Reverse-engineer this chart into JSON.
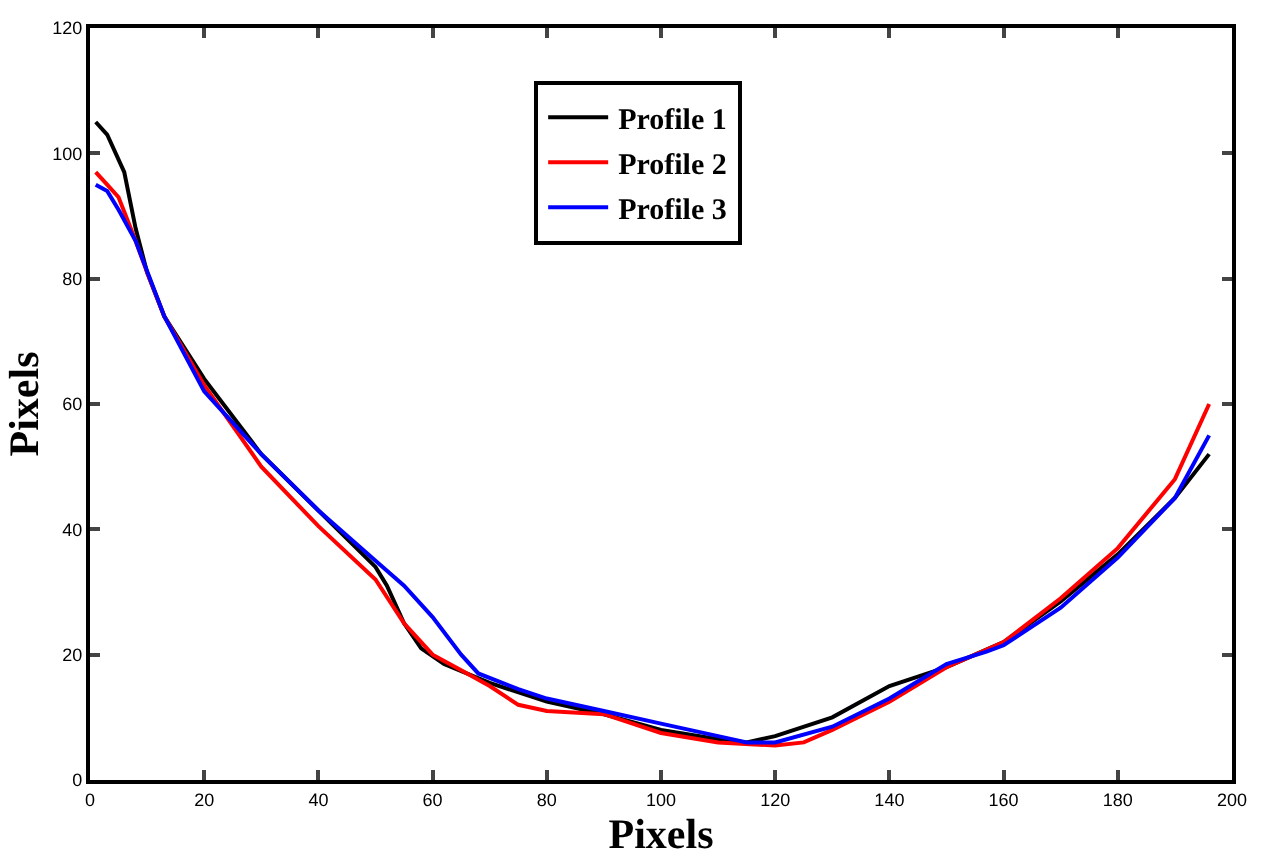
{
  "chart_data": {
    "type": "line",
    "xlabel": "Pixels",
    "ylabel": "Pixels",
    "xlim": [
      0,
      200
    ],
    "xticks": [
      0,
      20,
      40,
      60,
      80,
      100,
      120,
      140,
      160,
      180,
      200
    ],
    "ylim": [
      0,
      120
    ],
    "yticks": [
      0,
      20,
      40,
      60,
      80,
      100,
      120
    ],
    "grid": false,
    "legend": "top",
    "marker": "none",
    "line_style": "solid",
    "series": [
      {
        "name": "Profile 1",
        "color": "#000000",
        "x": [
          1,
          3,
          6,
          8,
          10,
          13,
          20,
          30,
          40,
          50,
          52,
          55,
          58,
          62,
          70,
          80,
          90,
          100,
          110,
          115,
          120,
          130,
          140,
          145,
          150,
          160,
          170,
          180,
          190,
          196
        ],
        "values": [
          105,
          103,
          97,
          88,
          81,
          74,
          64,
          52,
          43,
          34,
          31,
          25,
          21,
          18.5,
          15.5,
          12.5,
          10.5,
          8,
          6.5,
          6,
          7,
          10,
          15,
          16.5,
          18,
          22,
          28.5,
          36,
          45,
          52
        ]
      },
      {
        "name": "Profile 2",
        "color": "#ff0000",
        "x": [
          1,
          3,
          5,
          8,
          10,
          13,
          20,
          30,
          40,
          50,
          55,
          60,
          65,
          70,
          75,
          80,
          90,
          100,
          110,
          120,
          125,
          130,
          140,
          150,
          160,
          170,
          180,
          190,
          196
        ],
        "values": [
          97,
          95,
          93,
          86,
          81,
          74,
          63,
          50,
          40.5,
          32,
          25,
          20,
          17.5,
          15,
          12,
          11,
          10.5,
          7.5,
          6,
          5.5,
          6,
          8,
          12.5,
          18,
          22,
          29,
          37,
          48,
          60
        ]
      },
      {
        "name": "Profile 3",
        "color": "#0000ff",
        "x": [
          1,
          3,
          5,
          8,
          13,
          20,
          30,
          40,
          50,
          55,
          60,
          65,
          68,
          75,
          80,
          85,
          90,
          100,
          110,
          115,
          120,
          130,
          140,
          150,
          157,
          160,
          170,
          180,
          190,
          196
        ],
        "values": [
          95,
          94,
          91,
          86,
          74,
          62,
          52,
          43,
          35,
          31,
          26,
          20,
          17,
          14.5,
          13,
          12,
          11,
          9,
          7,
          6,
          6,
          8.5,
          13,
          18.5,
          20.5,
          21.5,
          27.5,
          35.5,
          45,
          55
        ]
      }
    ]
  }
}
